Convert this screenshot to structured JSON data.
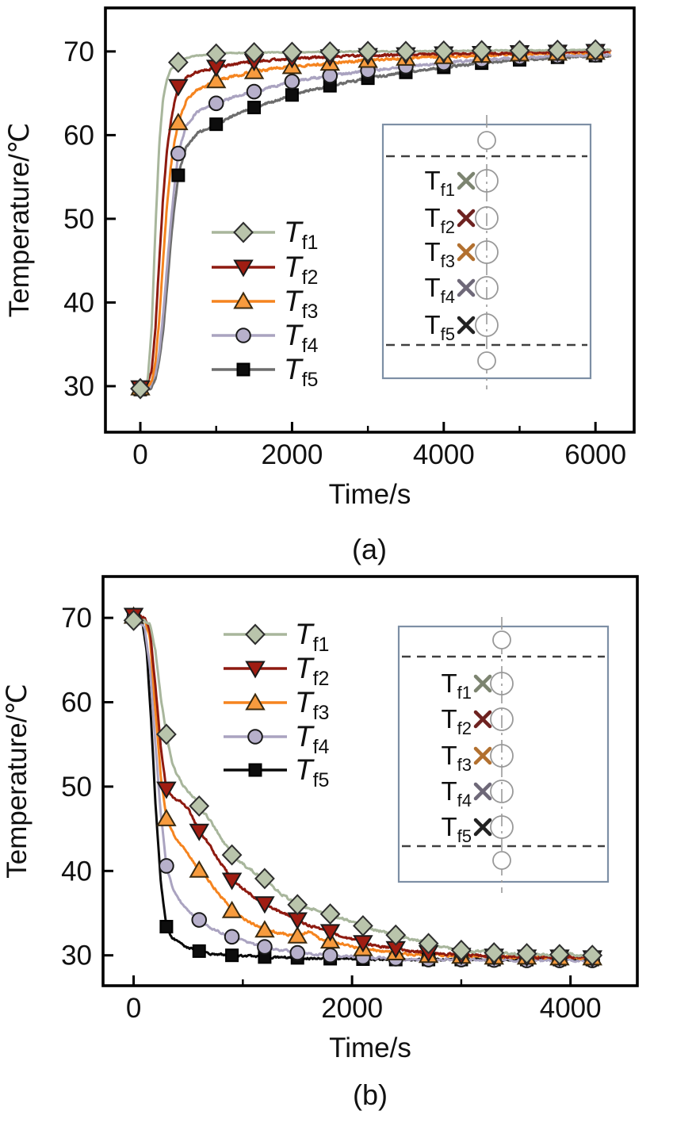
{
  "figure_captions": {
    "a": "(a)",
    "b": "(b)"
  },
  "chart_data": [
    {
      "id": "a",
      "type": "line",
      "xlabel": "Time/s",
      "ylabel": "Temperature/℃",
      "caption": "(a)",
      "xlim": [
        -460,
        6510
      ],
      "ylim": [
        24.5,
        75.2
      ],
      "x_ticks": [
        0,
        2000,
        4000,
        6000
      ],
      "x_minor_ticks": [
        1000,
        3000,
        5000
      ],
      "y_ticks": [
        30,
        40,
        50,
        60,
        70
      ],
      "grid": false,
      "legend_position": "inside-lower-left",
      "marker_every": 500,
      "marker_last": 6000,
      "series": [
        {
          "name": "Tf5",
          "label_main": "T",
          "label_sub": "f5",
          "marker": "square",
          "line_color": "#6d6d6d",
          "marker_fill": "#0d0d0d",
          "marker_edge": "#000000",
          "t": [
            0,
            140,
            200,
            250,
            300,
            350,
            400,
            450,
            500,
            600,
            750,
            1000,
            1250,
            1500,
            2000,
            2500,
            3000,
            3500,
            4000,
            4500,
            5000,
            5500,
            6000,
            6200
          ],
          "T": [
            29.6,
            29.7,
            31,
            33,
            36.5,
            41.5,
            47,
            51.5,
            55.2,
            58.5,
            60.2,
            61.3,
            62.4,
            63.3,
            64.8,
            65.9,
            66.8,
            67.5,
            68.1,
            68.6,
            69,
            69.3,
            69.5,
            69.5
          ]
        },
        {
          "name": "Tf4",
          "label_main": "T",
          "label_sub": "f4",
          "marker": "circle",
          "line_color": "#aaa3c0",
          "marker_fill": "#b7b0cb",
          "marker_edge": "#1a1a1a",
          "t": [
            0,
            120,
            200,
            250,
            300,
            350,
            400,
            450,
            500,
            600,
            750,
            1000,
            1250,
            1500,
            2000,
            2500,
            3000,
            3500,
            4000,
            4500,
            5000,
            5500,
            6000,
            6200
          ],
          "T": [
            29.7,
            29.8,
            31.5,
            34,
            38.5,
            44,
            49.5,
            54,
            57.8,
            61,
            62.8,
            63.8,
            64.6,
            65.2,
            66.4,
            67.1,
            67.7,
            68.2,
            68.6,
            69,
            69.3,
            69.45,
            69.6,
            69.6
          ]
        },
        {
          "name": "Tf3",
          "label_main": "T",
          "label_sub": "f3",
          "marker": "triangle-up",
          "line_color": "#f5841f",
          "marker_fill": "#f79b3e",
          "marker_edge": "#3a2a10",
          "t": [
            0,
            100,
            150,
            200,
            250,
            300,
            350,
            400,
            450,
            500,
            600,
            750,
            1000,
            1250,
            1500,
            1750,
            2000,
            2500,
            3000,
            3500,
            4000,
            4500,
            5000,
            5500,
            6000,
            6200
          ],
          "T": [
            29.8,
            29.9,
            30.5,
            33,
            38,
            45,
            51.5,
            56,
            59.2,
            61.5,
            64,
            65.4,
            66.5,
            67.1,
            67.6,
            67.95,
            68.2,
            68.6,
            68.95,
            69.2,
            69.4,
            69.55,
            69.7,
            69.8,
            69.9,
            69.9
          ]
        },
        {
          "name": "Tf2",
          "label_main": "T",
          "label_sub": "f2",
          "marker": "triangle-down",
          "line_color": "#8e1a10",
          "marker_fill": "#a01d12",
          "marker_edge": "#1a1a1a",
          "t": [
            0,
            80,
            150,
            200,
            250,
            300,
            350,
            400,
            450,
            500,
            600,
            750,
            1000,
            1250,
            1500,
            1750,
            2000,
            2500,
            3000,
            3500,
            4000,
            4500,
            5000,
            5500,
            6000,
            6200
          ],
          "T": [
            29.8,
            29.9,
            32,
            37,
            45,
            52.5,
            58,
            61.5,
            64,
            65.8,
            66.9,
            67.6,
            68.1,
            68.5,
            68.8,
            69,
            69.15,
            69.35,
            69.5,
            69.6,
            69.7,
            69.75,
            69.85,
            69.9,
            70,
            70
          ]
        },
        {
          "name": "Tf1",
          "label_main": "T",
          "label_sub": "f1",
          "marker": "diamond",
          "line_color": "#a8b69c",
          "marker_fill": "#b9c4ab",
          "marker_edge": "#2e2e2e",
          "t": [
            0,
            60,
            100,
            150,
            200,
            250,
            300,
            350,
            400,
            500,
            600,
            750,
            1000,
            1250,
            1500,
            2000,
            2500,
            3000,
            3500,
            4000,
            4500,
            5000,
            5500,
            6000,
            6200
          ],
          "T": [
            29.7,
            29.8,
            31,
            37,
            49,
            59,
            64.3,
            66.6,
            67.8,
            68.7,
            69.2,
            69.5,
            69.7,
            69.8,
            69.85,
            69.9,
            69.95,
            70,
            70,
            70.05,
            70.1,
            70.1,
            70.15,
            70.2,
            70.2
          ]
        }
      ],
      "inset": {
        "description": "tank-schematic-with-thermocouple-positions",
        "labels": [
          {
            "main": "T",
            "sub": "f1",
            "x_color": "#7c8470"
          },
          {
            "main": "T",
            "sub": "f2",
            "x_color": "#6e2220"
          },
          {
            "main": "T",
            "sub": "f3",
            "x_color": "#b2702f"
          },
          {
            "main": "T",
            "sub": "f4",
            "x_color": "#6e6878"
          },
          {
            "main": "T",
            "sub": "f5",
            "x_color": "#222222"
          }
        ]
      }
    },
    {
      "id": "b",
      "type": "line",
      "xlabel": "Time/s",
      "ylabel": "Temperature/℃",
      "caption": "(b)",
      "xlim": [
        -280,
        4612
      ],
      "ylim": [
        26.4,
        74.9
      ],
      "x_ticks": [
        0,
        2000,
        4000
      ],
      "x_minor_ticks": [
        1000,
        3000
      ],
      "y_ticks": [
        30,
        40,
        50,
        60,
        70
      ],
      "grid": false,
      "legend_position": "inside-upper-left",
      "marker_every": 300,
      "marker_last": 4200,
      "series": [
        {
          "name": "Tf5",
          "label_main": "T",
          "label_sub": "f5",
          "marker": "square",
          "line_color": "#0a0a0a",
          "marker_fill": "#0d0d0d",
          "marker_edge": "#000000",
          "t": [
            0,
            80,
            120,
            160,
            200,
            250,
            300,
            350,
            400,
            450,
            500,
            600,
            700,
            800,
            900,
            1050,
            1200,
            1500,
            1800,
            2400,
            3000,
            3600,
            4200
          ],
          "T": [
            70.1,
            69.5,
            66,
            58,
            48,
            38.5,
            33.4,
            32.2,
            31.6,
            31.2,
            30.9,
            30.5,
            30.2,
            30.1,
            30,
            29.9,
            29.8,
            29.7,
            29.6,
            29.5,
            29.5,
            29.5,
            29.5
          ]
        },
        {
          "name": "Tf4",
          "label_main": "T",
          "label_sub": "f4",
          "marker": "circle",
          "line_color": "#aaa3c0",
          "marker_fill": "#b7b0cb",
          "marker_edge": "#1a1a1a",
          "t": [
            0,
            100,
            150,
            200,
            250,
            300,
            350,
            400,
            450,
            500,
            600,
            700,
            800,
            900,
            1000,
            1100,
            1200,
            1350,
            1500,
            1800,
            2100,
            2400,
            2700,
            3000,
            3600,
            4200
          ],
          "T": [
            69.8,
            69,
            64,
            55,
            46.5,
            40.6,
            38.3,
            36.9,
            36,
            35.3,
            34.2,
            33.3,
            32.7,
            32.2,
            31.7,
            31.3,
            31,
            30.6,
            30.3,
            30,
            29.8,
            29.6,
            29.5,
            29.5,
            29.4,
            29.4
          ]
        },
        {
          "name": "Tf3",
          "label_main": "T",
          "label_sub": "f3",
          "marker": "triangle-up",
          "line_color": "#f5841f",
          "marker_fill": "#f79b3e",
          "marker_edge": "#3a2a10",
          "t": [
            0,
            100,
            150,
            200,
            250,
            300,
            350,
            400,
            450,
            500,
            600,
            700,
            800,
            900,
            1000,
            1100,
            1200,
            1350,
            1500,
            1600,
            1700,
            1800,
            1950,
            2100,
            2400,
            2700,
            3000,
            3300,
            3600,
            3900,
            4200
          ],
          "T": [
            70.2,
            69.8,
            67.5,
            59,
            51,
            46.2,
            44.7,
            43.6,
            42.8,
            42,
            40.1,
            38.7,
            37,
            35.3,
            34.4,
            33.7,
            33,
            32.6,
            32.3,
            32.8,
            32,
            31.7,
            31.2,
            30.8,
            30.3,
            30,
            29.9,
            29.8,
            29.8,
            29.7,
            29.7
          ]
        },
        {
          "name": "Tf2",
          "label_main": "T",
          "label_sub": "f2",
          "marker": "triangle-down",
          "line_color": "#8e1a10",
          "marker_fill": "#a01d12",
          "marker_edge": "#1a1a1a",
          "t": [
            0,
            100,
            150,
            200,
            250,
            300,
            350,
            400,
            450,
            500,
            600,
            700,
            800,
            900,
            1000,
            1100,
            1200,
            1350,
            1500,
            1650,
            1800,
            1950,
            2100,
            2250,
            2400,
            2550,
            2700,
            3000,
            3300,
            3600,
            3900,
            4200
          ],
          "T": [
            70.3,
            70,
            68.5,
            62,
            54.5,
            49.7,
            48.9,
            48.4,
            48,
            47.3,
            44.7,
            43,
            40.9,
            38.9,
            37.9,
            37,
            36.1,
            35.1,
            34.2,
            33.4,
            32.8,
            32.1,
            31.5,
            31.1,
            30.8,
            30.5,
            30.3,
            30,
            29.9,
            29.8,
            29.8,
            29.7
          ]
        },
        {
          "name": "Tf1",
          "label_main": "T",
          "label_sub": "f1",
          "marker": "diamond",
          "line_color": "#a8b69c",
          "marker_fill": "#b9c4ab",
          "marker_edge": "#2e2e2e",
          "t": [
            0,
            100,
            150,
            200,
            250,
            300,
            350,
            400,
            450,
            500,
            550,
            600,
            700,
            800,
            900,
            1000,
            1100,
            1200,
            1350,
            1500,
            1650,
            1800,
            1950,
            2100,
            2250,
            2400,
            2550,
            2700,
            2850,
            3000,
            3200,
            3400,
            3600,
            3900,
            4200
          ],
          "T": [
            69.7,
            69.6,
            69.2,
            66,
            60.5,
            56.2,
            53,
            51.3,
            50.2,
            49.5,
            48.8,
            47.7,
            46,
            44,
            41.9,
            40.8,
            39.9,
            39.1,
            37.3,
            36,
            35.4,
            34.9,
            34.2,
            33.5,
            32.9,
            32.4,
            31.9,
            31.4,
            30.9,
            30.6,
            30.4,
            30.2,
            30.2,
            30.1,
            30
          ]
        }
      ],
      "inset": {
        "description": "tank-schematic-with-thermocouple-positions",
        "labels": [
          {
            "main": "T",
            "sub": "f1",
            "x_color": "#7c8470"
          },
          {
            "main": "T",
            "sub": "f2",
            "x_color": "#6e2220"
          },
          {
            "main": "T",
            "sub": "f3",
            "x_color": "#b2702f"
          },
          {
            "main": "T",
            "sub": "f4",
            "x_color": "#6e6878"
          },
          {
            "main": "T",
            "sub": "f5",
            "x_color": "#222222"
          }
        ]
      }
    }
  ],
  "style_colors": {
    "axis": "#000000",
    "inset_border": "#7d8fa5",
    "inset_circle": "#999999",
    "inset_dashed": "#404040",
    "inset_centerline": "#9a9a9a"
  }
}
